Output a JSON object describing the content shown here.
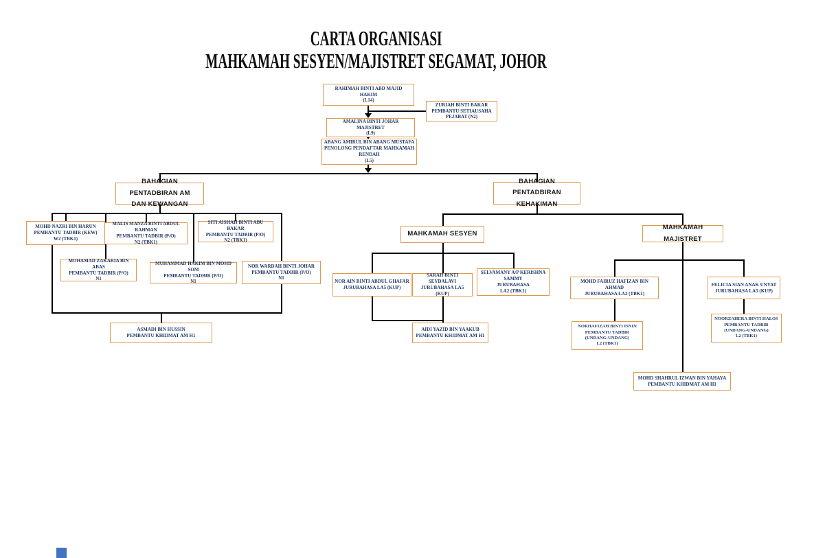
{
  "title": {
    "line1": "CARTA ORGANISASI",
    "line2": "MAHKAMAH SESYEN/MAJISTRET SEGAMAT, JOHOR"
  },
  "colors": {
    "box_border": "#E0984F",
    "box_text": "#1F3864",
    "header_text": "#1A1A1A",
    "connector": "#000000",
    "corner_mark": "#4472C4"
  },
  "org": {
    "hakim": {
      "lines": [
        "RAHIMAH BINTI ABD MAJID",
        "HAKIM",
        "(L14)"
      ]
    },
    "pembantu_setiausaha": {
      "lines": [
        "ZURIAH BINTI BAKAR",
        "PEMBANTU SETIAUSAHA",
        "PEJABAT (N2)"
      ]
    },
    "majistret": {
      "lines": [
        "AMALINA BINTI JOHAR",
        "MAJISTRET",
        "(L9)"
      ]
    },
    "penolong_pendaftar": {
      "lines": [
        "ABANG AMIRUL BIN ABANG MUSTAFA",
        "PENOLONG PENDAFTAR MAHKAMAH",
        "RENDAH",
        "(L5)"
      ]
    },
    "bahagian_am_kewangan": {
      "lines": [
        "BAHAGIAN PENTADBIRAN AM",
        "DAN KEWANGAN"
      ]
    },
    "bahagian_kehakiman": {
      "lines": [
        "BAHAGIAN PENTADBIRAN",
        "KEHAKIMAN"
      ]
    },
    "mohd_nazri": {
      "lines": [
        "MOHD NAZRI BIN HARUN",
        "PEMBANTU TADBIR (KEW)",
        "W2 (TBK1)"
      ]
    },
    "malis_manza": {
      "lines": [
        "MALIS MANZA BINTI ABDUL RAHMAN",
        "PEMBANTU TADBIR (P/O)",
        "N2 (TBK1)"
      ]
    },
    "siti_aishah": {
      "lines": [
        "SITI AISHAH BINTI ABU BAKAR",
        "PEMBANTU TADBIR (P/O)",
        "N2 (TBK1)"
      ]
    },
    "mohamad_zakaria": {
      "lines": [
        "MOHAMAD ZAKARIA BIN ABAS",
        "PEMBANTU TADBIR (P/O)",
        "N1"
      ]
    },
    "muhammad_hakim": {
      "lines": [
        "MUHAMMAD HAKIM BIN MOHD SOM",
        "PEMBANTU TADBIR (P/O)",
        "N1"
      ]
    },
    "nor_wardah": {
      "lines": [
        "NOR WARDAH BINTI JOHAR",
        "PEMBANTU TADBIR (P/O)",
        "N1"
      ]
    },
    "asmadi": {
      "lines": [
        "ASMADI BIN HUSSIN",
        "PEMBANTU KHIDMAT AM H1"
      ]
    },
    "mahkamah_sesyen": {
      "lines": [
        "MAHKAMAH SESYEN"
      ]
    },
    "nor_ain": {
      "lines": [
        "NOR AIN BINTI ABDUL GHAFAR",
        "JURUBAHASA LA5 (KUP)"
      ]
    },
    "sarah": {
      "lines": [
        "SARAH BINTI SEYDALAVI",
        "JURUBAHASA LA5 (KUP)"
      ]
    },
    "selvamany": {
      "lines": [
        "SELVAMANY A/P KERISHNA SAMMY",
        "JURUBAHASA",
        "LA2 (TBK1)"
      ]
    },
    "aidi_yazid": {
      "lines": [
        "AIDI YAZID BIN YAAKUB",
        "PEMBANTU KHIDMAT AM H1"
      ]
    },
    "mahkamah_majistret": {
      "lines": [
        "MAHKAMAH MAJISTRET"
      ]
    },
    "mohd_fairuz": {
      "lines": [
        "MOHD FAIRUZ HAFIZAN BIN AHMAD",
        "JURUBAHASA LA2 (TBK1)"
      ]
    },
    "felicia": {
      "lines": [
        "FELICIA SIAN ANAK UNYAT",
        "JURUBAHASA LA5 (KUP)"
      ]
    },
    "norhafizah": {
      "lines": [
        "NORHAFIZAH BINTI ISNIN",
        "PEMBANTU TADBIR",
        "(UNDANG-UNDANG)",
        "L2 (TBK1)"
      ]
    },
    "noorzahera": {
      "lines": [
        "NOORZAHERA BINTI HALOS",
        "PEMBANTU TADBIR",
        "(UNDANG-UNDANG)",
        "L2 (TBK1)"
      ]
    },
    "mohd_shahrul": {
      "lines": [
        "MOHD SHAHRUL IZWAN BIN YAHAYA",
        "PEMBANTU KHIDMAT AM H1"
      ]
    }
  }
}
